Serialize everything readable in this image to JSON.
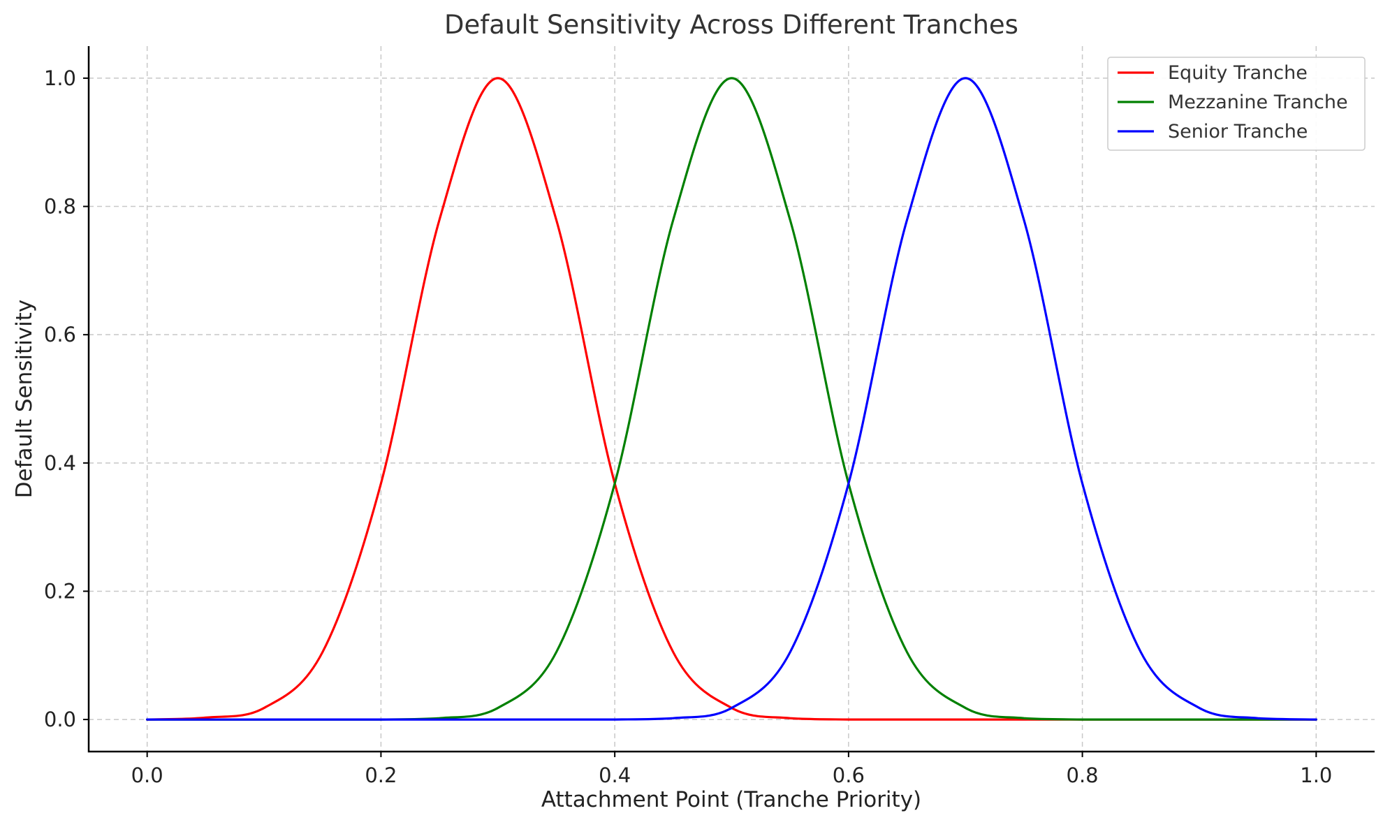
{
  "chart_data": {
    "type": "line",
    "title": "Default Sensitivity Across Different Tranches",
    "xlabel": "Attachment Point (Tranche Priority)",
    "ylabel": "Default Sensitivity",
    "xlim": [
      -0.05,
      1.05
    ],
    "ylim": [
      -0.05,
      1.05
    ],
    "xticks": [
      "0.0",
      "0.2",
      "0.4",
      "0.6",
      "0.8",
      "1.0"
    ],
    "yticks": [
      "0.0",
      "0.2",
      "0.4",
      "0.6",
      "0.8",
      "1.0"
    ],
    "grid": true,
    "legend_position": "top-right",
    "x": [
      0.0,
      0.05,
      0.1,
      0.15,
      0.2,
      0.25,
      0.3,
      0.35,
      0.4,
      0.45,
      0.5,
      0.55,
      0.6,
      0.65,
      0.7,
      0.75,
      0.8,
      0.85,
      0.9,
      0.95,
      1.0
    ],
    "series": [
      {
        "name": "Equity Tranche",
        "color": "#ff0000",
        "values": [
          0.0,
          0.003,
          0.018,
          0.105,
          0.368,
          0.779,
          1.0,
          0.779,
          0.368,
          0.105,
          0.018,
          0.002,
          0.0,
          0.0,
          0.0,
          0.0,
          0.0,
          0.0,
          0.0,
          0.0,
          0.0
        ]
      },
      {
        "name": "Mezzanine Tranche",
        "color": "#008000",
        "values": [
          0.0,
          0.0,
          0.0,
          0.0,
          0.0,
          0.002,
          0.018,
          0.105,
          0.368,
          0.779,
          1.0,
          0.779,
          0.368,
          0.105,
          0.018,
          0.002,
          0.0,
          0.0,
          0.0,
          0.0,
          0.0
        ]
      },
      {
        "name": "Senior Tranche",
        "color": "#0000ff",
        "values": [
          0.0,
          0.0,
          0.0,
          0.0,
          0.0,
          0.0,
          0.0,
          0.0,
          0.0,
          0.002,
          0.018,
          0.105,
          0.368,
          0.779,
          1.0,
          0.779,
          0.368,
          0.105,
          0.018,
          0.002,
          0.0
        ]
      }
    ]
  }
}
